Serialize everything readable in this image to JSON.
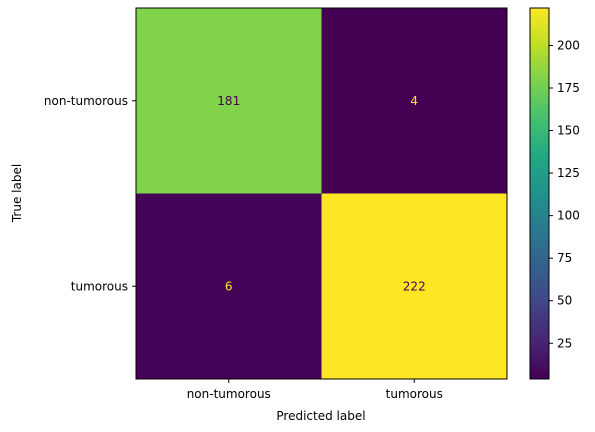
{
  "chart_data": {
    "type": "heatmap",
    "title": "",
    "xlabel": "Predicted label",
    "ylabel": "True label",
    "x_categories": [
      "non-tumorous",
      "tumorous"
    ],
    "y_categories": [
      "non-tumorous",
      "tumorous"
    ],
    "values": [
      [
        181,
        4
      ],
      [
        6,
        222
      ]
    ],
    "colormap": "viridis",
    "colorbar": {
      "range": [
        4,
        222
      ],
      "ticks": [
        25,
        50,
        75,
        100,
        125,
        150,
        175,
        200
      ],
      "tick_labels": [
        "25",
        "50",
        "75",
        "100",
        "125",
        "150",
        "175",
        "200"
      ]
    },
    "text_colors": {
      "on_dark": "#fde725",
      "on_light": "#440154"
    }
  }
}
